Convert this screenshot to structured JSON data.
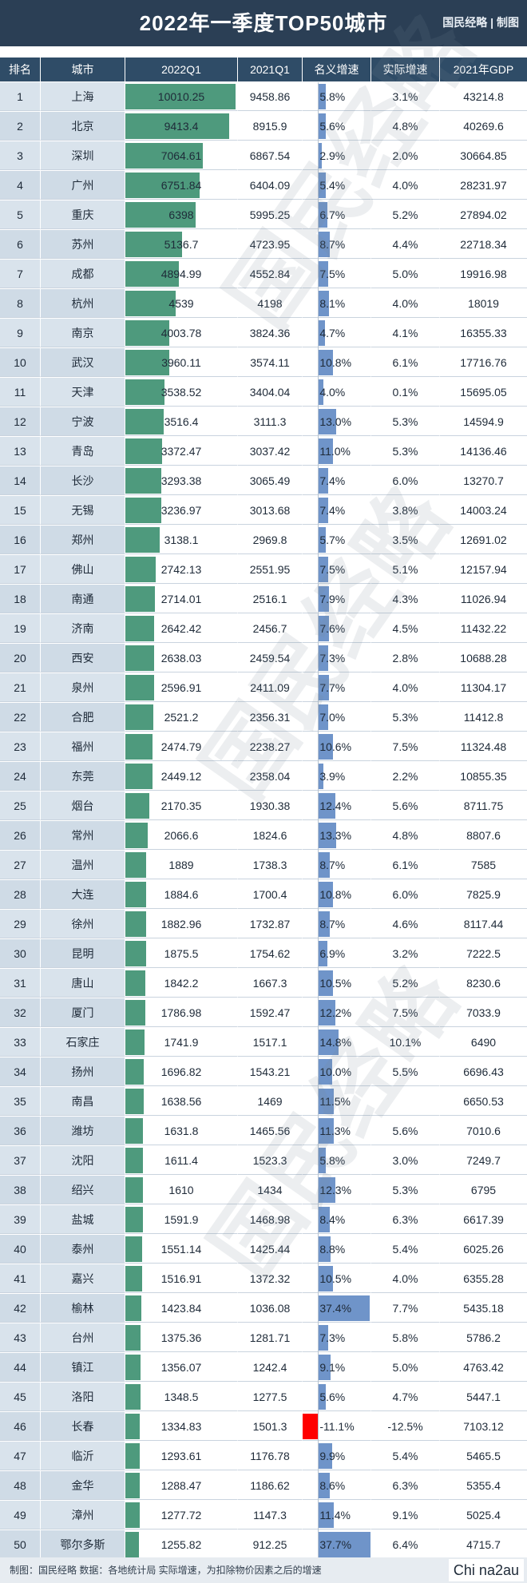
{
  "title": "2022年一季度TOP50城市",
  "brand": "国民经略 | 制图",
  "watermark_text": "国民经略",
  "header": {
    "rank": "排名",
    "city": "城市",
    "q1_2022": "2022Q1",
    "q1_2021": "2021Q1",
    "nominal": "名义增速",
    "real": "实际增速",
    "gdp_2021": "2021年GDP"
  },
  "footer": "制图：国民经略 数据：各地统计局 实际增速，为扣除物价因素之后的增速",
  "footer_watermark": "Chi na2au",
  "colors": {
    "q1_bar": "#4e9a7d",
    "nominal_bar": "#6f94c9",
    "negative_bar": "#ff0000",
    "title_bg": "#2b3f55",
    "header_bg": "#2f4c67"
  },
  "chart_data": {
    "type": "table",
    "q1_bar_max": 10010.25,
    "nominal_bar_range": [
      -11.1,
      37.7
    ],
    "rows": [
      {
        "rank": "1",
        "city": "上海",
        "q1_2022": "10010.25",
        "q1_2021": "9458.86",
        "nominal": "5.8%",
        "real": "3.1%",
        "gdp_2021": "43214.8"
      },
      {
        "rank": "2",
        "city": "北京",
        "q1_2022": "9413.4",
        "q1_2021": "8915.9",
        "nominal": "5.6%",
        "real": "4.8%",
        "gdp_2021": "40269.6"
      },
      {
        "rank": "3",
        "city": "深圳",
        "q1_2022": "7064.61",
        "q1_2021": "6867.54",
        "nominal": "2.9%",
        "real": "2.0%",
        "gdp_2021": "30664.85"
      },
      {
        "rank": "4",
        "city": "广州",
        "q1_2022": "6751.84",
        "q1_2021": "6404.09",
        "nominal": "5.4%",
        "real": "4.0%",
        "gdp_2021": "28231.97"
      },
      {
        "rank": "5",
        "city": "重庆",
        "q1_2022": "6398",
        "q1_2021": "5995.25",
        "nominal": "6.7%",
        "real": "5.2%",
        "gdp_2021": "27894.02"
      },
      {
        "rank": "6",
        "city": "苏州",
        "q1_2022": "5136.7",
        "q1_2021": "4723.95",
        "nominal": "8.7%",
        "real": "4.4%",
        "gdp_2021": "22718.34"
      },
      {
        "rank": "7",
        "city": "成都",
        "q1_2022": "4894.99",
        "q1_2021": "4552.84",
        "nominal": "7.5%",
        "real": "5.0%",
        "gdp_2021": "19916.98"
      },
      {
        "rank": "8",
        "city": "杭州",
        "q1_2022": "4539",
        "q1_2021": "4198",
        "nominal": "8.1%",
        "real": "4.0%",
        "gdp_2021": "18019"
      },
      {
        "rank": "9",
        "city": "南京",
        "q1_2022": "4003.78",
        "q1_2021": "3824.36",
        "nominal": "4.7%",
        "real": "4.1%",
        "gdp_2021": "16355.33"
      },
      {
        "rank": "10",
        "city": "武汉",
        "q1_2022": "3960.11",
        "q1_2021": "3574.11",
        "nominal": "10.8%",
        "real": "6.1%",
        "gdp_2021": "17716.76"
      },
      {
        "rank": "11",
        "city": "天津",
        "q1_2022": "3538.52",
        "q1_2021": "3404.04",
        "nominal": "4.0%",
        "real": "0.1%",
        "gdp_2021": "15695.05"
      },
      {
        "rank": "12",
        "city": "宁波",
        "q1_2022": "3516.4",
        "q1_2021": "3111.3",
        "nominal": "13.0%",
        "real": "5.3%",
        "gdp_2021": "14594.9"
      },
      {
        "rank": "13",
        "city": "青岛",
        "q1_2022": "3372.47",
        "q1_2021": "3037.42",
        "nominal": "11.0%",
        "real": "5.3%",
        "gdp_2021": "14136.46"
      },
      {
        "rank": "14",
        "city": "长沙",
        "q1_2022": "3293.38",
        "q1_2021": "3065.49",
        "nominal": "7.4%",
        "real": "6.0%",
        "gdp_2021": "13270.7"
      },
      {
        "rank": "15",
        "city": "无锡",
        "q1_2022": "3236.97",
        "q1_2021": "3013.68",
        "nominal": "7.4%",
        "real": "3.8%",
        "gdp_2021": "14003.24"
      },
      {
        "rank": "16",
        "city": "郑州",
        "q1_2022": "3138.1",
        "q1_2021": "2969.8",
        "nominal": "5.7%",
        "real": "3.5%",
        "gdp_2021": "12691.02"
      },
      {
        "rank": "17",
        "city": "佛山",
        "q1_2022": "2742.13",
        "q1_2021": "2551.95",
        "nominal": "7.5%",
        "real": "5.1%",
        "gdp_2021": "12157.94"
      },
      {
        "rank": "18",
        "city": "南通",
        "q1_2022": "2714.01",
        "q1_2021": "2516.1",
        "nominal": "7.9%",
        "real": "4.3%",
        "gdp_2021": "11026.94"
      },
      {
        "rank": "19",
        "city": "济南",
        "q1_2022": "2642.42",
        "q1_2021": "2456.7",
        "nominal": "7.6%",
        "real": "4.5%",
        "gdp_2021": "11432.22"
      },
      {
        "rank": "20",
        "city": "西安",
        "q1_2022": "2638.03",
        "q1_2021": "2459.54",
        "nominal": "7.3%",
        "real": "2.8%",
        "gdp_2021": "10688.28"
      },
      {
        "rank": "21",
        "city": "泉州",
        "q1_2022": "2596.91",
        "q1_2021": "2411.09",
        "nominal": "7.7%",
        "real": "4.0%",
        "gdp_2021": "11304.17"
      },
      {
        "rank": "22",
        "city": "合肥",
        "q1_2022": "2521.2",
        "q1_2021": "2356.31",
        "nominal": "7.0%",
        "real": "5.3%",
        "gdp_2021": "11412.8"
      },
      {
        "rank": "23",
        "city": "福州",
        "q1_2022": "2474.79",
        "q1_2021": "2238.27",
        "nominal": "10.6%",
        "real": "7.5%",
        "gdp_2021": "11324.48"
      },
      {
        "rank": "24",
        "city": "东莞",
        "q1_2022": "2449.12",
        "q1_2021": "2358.04",
        "nominal": "3.9%",
        "real": "2.2%",
        "gdp_2021": "10855.35"
      },
      {
        "rank": "25",
        "city": "烟台",
        "q1_2022": "2170.35",
        "q1_2021": "1930.38",
        "nominal": "12.4%",
        "real": "5.6%",
        "gdp_2021": "8711.75"
      },
      {
        "rank": "26",
        "city": "常州",
        "q1_2022": "2066.6",
        "q1_2021": "1824.6",
        "nominal": "13.3%",
        "real": "4.8%",
        "gdp_2021": "8807.6"
      },
      {
        "rank": "27",
        "city": "温州",
        "q1_2022": "1889",
        "q1_2021": "1738.3",
        "nominal": "8.7%",
        "real": "6.1%",
        "gdp_2021": "7585"
      },
      {
        "rank": "28",
        "city": "大连",
        "q1_2022": "1884.6",
        "q1_2021": "1700.4",
        "nominal": "10.8%",
        "real": "6.0%",
        "gdp_2021": "7825.9"
      },
      {
        "rank": "29",
        "city": "徐州",
        "q1_2022": "1882.96",
        "q1_2021": "1732.87",
        "nominal": "8.7%",
        "real": "4.6%",
        "gdp_2021": "8117.44"
      },
      {
        "rank": "30",
        "city": "昆明",
        "q1_2022": "1875.5",
        "q1_2021": "1754.62",
        "nominal": "6.9%",
        "real": "3.2%",
        "gdp_2021": "7222.5"
      },
      {
        "rank": "31",
        "city": "唐山",
        "q1_2022": "1842.2",
        "q1_2021": "1667.3",
        "nominal": "10.5%",
        "real": "5.2%",
        "gdp_2021": "8230.6"
      },
      {
        "rank": "32",
        "city": "厦门",
        "q1_2022": "1786.98",
        "q1_2021": "1592.47",
        "nominal": "12.2%",
        "real": "7.5%",
        "gdp_2021": "7033.9"
      },
      {
        "rank": "33",
        "city": "石家庄",
        "q1_2022": "1741.9",
        "q1_2021": "1517.1",
        "nominal": "14.8%",
        "real": "10.1%",
        "gdp_2021": "6490"
      },
      {
        "rank": "34",
        "city": "扬州",
        "q1_2022": "1696.82",
        "q1_2021": "1543.21",
        "nominal": "10.0%",
        "real": "5.5%",
        "gdp_2021": "6696.43"
      },
      {
        "rank": "35",
        "city": "南昌",
        "q1_2022": "1638.56",
        "q1_2021": "1469",
        "nominal": "11.5%",
        "real": "",
        "gdp_2021": "6650.53"
      },
      {
        "rank": "36",
        "city": "潍坊",
        "q1_2022": "1631.8",
        "q1_2021": "1465.56",
        "nominal": "11.3%",
        "real": "5.6%",
        "gdp_2021": "7010.6"
      },
      {
        "rank": "37",
        "city": "沈阳",
        "q1_2022": "1611.4",
        "q1_2021": "1523.3",
        "nominal": "5.8%",
        "real": "3.0%",
        "gdp_2021": "7249.7"
      },
      {
        "rank": "38",
        "city": "绍兴",
        "q1_2022": "1610",
        "q1_2021": "1434",
        "nominal": "12.3%",
        "real": "5.3%",
        "gdp_2021": "6795"
      },
      {
        "rank": "39",
        "city": "盐城",
        "q1_2022": "1591.9",
        "q1_2021": "1468.98",
        "nominal": "8.4%",
        "real": "6.3%",
        "gdp_2021": "6617.39"
      },
      {
        "rank": "40",
        "city": "泰州",
        "q1_2022": "1551.14",
        "q1_2021": "1425.44",
        "nominal": "8.8%",
        "real": "5.4%",
        "gdp_2021": "6025.26"
      },
      {
        "rank": "41",
        "city": "嘉兴",
        "q1_2022": "1516.91",
        "q1_2021": "1372.32",
        "nominal": "10.5%",
        "real": "4.0%",
        "gdp_2021": "6355.28"
      },
      {
        "rank": "42",
        "city": "榆林",
        "q1_2022": "1423.84",
        "q1_2021": "1036.08",
        "nominal": "37.4%",
        "real": "7.7%",
        "gdp_2021": "5435.18"
      },
      {
        "rank": "43",
        "city": "台州",
        "q1_2022": "1375.36",
        "q1_2021": "1281.71",
        "nominal": "7.3%",
        "real": "5.8%",
        "gdp_2021": "5786.2"
      },
      {
        "rank": "44",
        "city": "镇江",
        "q1_2022": "1356.07",
        "q1_2021": "1242.4",
        "nominal": "9.1%",
        "real": "5.0%",
        "gdp_2021": "4763.42"
      },
      {
        "rank": "45",
        "city": "洛阳",
        "q1_2022": "1348.5",
        "q1_2021": "1277.5",
        "nominal": "5.6%",
        "real": "4.7%",
        "gdp_2021": "5447.1"
      },
      {
        "rank": "46",
        "city": "长春",
        "q1_2022": "1334.83",
        "q1_2021": "1501.3",
        "nominal": "-11.1%",
        "real": "-12.5%",
        "gdp_2021": "7103.12"
      },
      {
        "rank": "47",
        "city": "临沂",
        "q1_2022": "1293.61",
        "q1_2021": "1176.78",
        "nominal": "9.9%",
        "real": "5.4%",
        "gdp_2021": "5465.5"
      },
      {
        "rank": "48",
        "city": "金华",
        "q1_2022": "1288.47",
        "q1_2021": "1186.62",
        "nominal": "8.6%",
        "real": "6.3%",
        "gdp_2021": "5355.4"
      },
      {
        "rank": "49",
        "city": "漳州",
        "q1_2022": "1277.72",
        "q1_2021": "1147.3",
        "nominal": "11.4%",
        "real": "9.1%",
        "gdp_2021": "5025.4"
      },
      {
        "rank": "50",
        "city": "鄂尔多斯",
        "q1_2022": "1255.82",
        "q1_2021": "912.25",
        "nominal": "37.7%",
        "real": "6.4%",
        "gdp_2021": "4715.7"
      }
    ]
  }
}
